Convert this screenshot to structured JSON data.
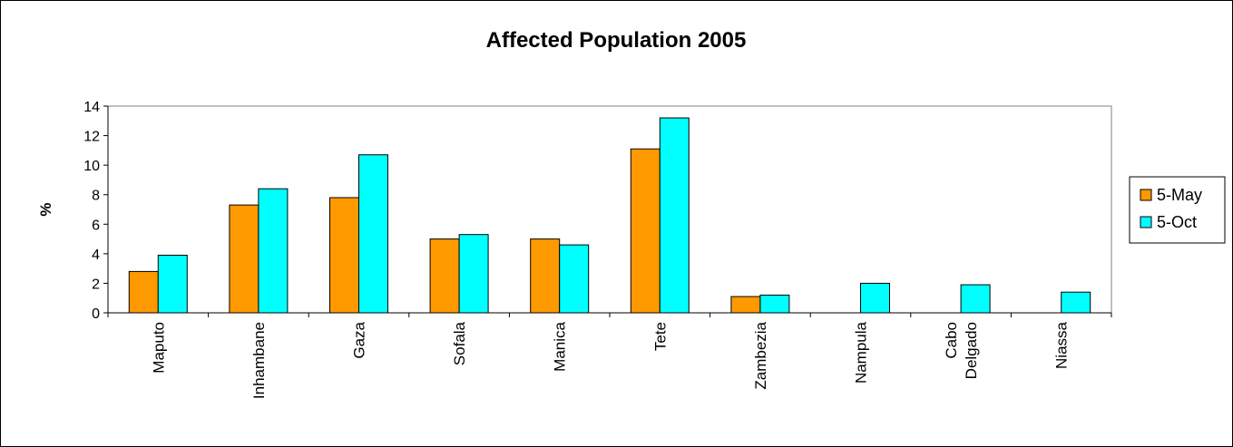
{
  "chart_data": {
    "type": "bar",
    "title": "Affected Population 2005",
    "xlabel": "",
    "ylabel": "%",
    "ylim": [
      0,
      14
    ],
    "yticks": [
      0,
      2,
      4,
      6,
      8,
      10,
      12,
      14
    ],
    "grid": false,
    "legend_position": "right",
    "categories": [
      [
        "Maputo"
      ],
      [
        "Inhambane"
      ],
      [
        "Gaza"
      ],
      [
        "Sofala"
      ],
      [
        "Manica"
      ],
      [
        "Tete"
      ],
      [
        "Zambezia"
      ],
      [
        "Nampula"
      ],
      [
        "Cabo",
        "Delgado"
      ],
      [
        "Niassa"
      ]
    ],
    "series": [
      {
        "name": "5-May",
        "color": "#FF9900",
        "values": [
          2.8,
          7.3,
          7.8,
          5.0,
          5.0,
          11.1,
          1.1,
          null,
          null,
          null
        ]
      },
      {
        "name": "5-Oct",
        "color": "#00FFFF",
        "values": [
          3.9,
          8.4,
          10.7,
          5.3,
          4.6,
          13.2,
          1.2,
          2.0,
          1.9,
          1.4
        ]
      }
    ]
  }
}
